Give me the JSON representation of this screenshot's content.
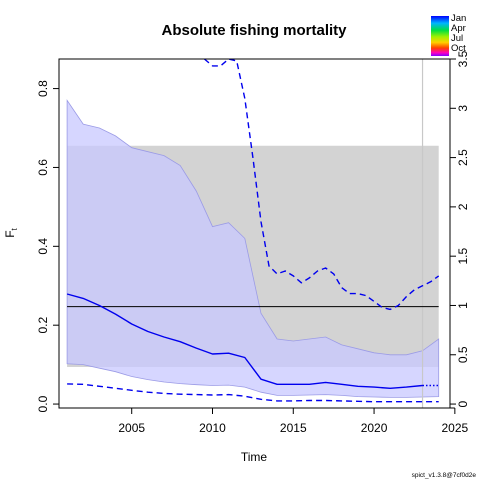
{
  "chart_data": {
    "type": "line",
    "title": "Absolute fishing mortality",
    "xlabel": "Time",
    "ylabel": "F",
    "ylabel_subscript": "t",
    "footer": "spict_v1.3.8@7cf0d2e",
    "xlim": [
      2000.5,
      2024.7
    ],
    "ylim": [
      -0.01,
      0.875
    ],
    "ylim_right": [
      -0.04,
      3.5
    ],
    "right_axis_scale": 4,
    "x_ticks": [
      2005,
      2010,
      2015,
      2020,
      2025
    ],
    "y_ticks": [
      0.0,
      0.2,
      0.4,
      0.6,
      0.8
    ],
    "y_ticks_right": [
      0,
      0.5,
      1,
      1.5,
      2,
      2.5,
      3,
      3.5
    ],
    "y_tick_labels": [
      "0.0",
      "0.2",
      "0.4",
      "0.6",
      "0.8"
    ],
    "y_tick_labels_right": [
      "0",
      "0.5",
      "1",
      "1.5",
      "2",
      "2.5",
      "3",
      "3.5"
    ],
    "fmsy": 0.247,
    "fmsy_ci": [
      0.094,
      0.655
    ],
    "shade_x_range": [
      2001,
      2024
    ],
    "vertical_line_x": 2023,
    "colors": {
      "estimate": "#0000ee",
      "ci_fill": "#c8c8ff",
      "ci_edge": "#9b9be6",
      "ref_band": "#d3d3d3",
      "ref_line": "#000000",
      "vline": "#c8c8c8"
    },
    "series": [
      {
        "name": "F estimate",
        "style": "solid",
        "x": [
          2001,
          2002,
          2003,
          2004,
          2005,
          2006,
          2007,
          2008,
          2009,
          2010,
          2011,
          2012,
          2013,
          2014,
          2015,
          2016,
          2017,
          2018,
          2019,
          2020,
          2021,
          2022,
          2023
        ],
        "values": [
          0.279,
          0.268,
          0.25,
          0.228,
          0.203,
          0.184,
          0.17,
          0.158,
          0.142,
          0.127,
          0.129,
          0.118,
          0.063,
          0.05,
          0.05,
          0.05,
          0.055,
          0.05,
          0.045,
          0.043,
          0.04,
          0.043,
          0.047
        ]
      },
      {
        "name": "F forecast",
        "style": "dotted",
        "x": [
          2023,
          2024
        ],
        "values": [
          0.047,
          0.047
        ]
      },
      {
        "name": "CI upper",
        "style": "dashed",
        "axis": "right",
        "x": [
          2009.5,
          2010,
          2010.5,
          2011,
          2011.5,
          2012,
          2012.5,
          2013,
          2013.5,
          2014,
          2014.5,
          2015,
          2015.5,
          2016,
          2016.5,
          2017,
          2017.5,
          2018,
          2018.5,
          2019,
          2019.5,
          2020,
          2020.5,
          2021,
          2021.5,
          2022,
          2022.5,
          2023,
          2023.5,
          2024
        ],
        "values": [
          3.5,
          3.43,
          3.43,
          3.5,
          3.48,
          3.1,
          2.5,
          1.85,
          1.4,
          1.32,
          1.35,
          1.3,
          1.23,
          1.28,
          1.35,
          1.38,
          1.32,
          1.18,
          1.12,
          1.12,
          1.1,
          1.04,
          0.98,
          0.96,
          1.0,
          1.09,
          1.16,
          1.2,
          1.24,
          1.3
        ]
      },
      {
        "name": "CI lower",
        "style": "dashed",
        "x": [
          2001,
          2002,
          2003,
          2004,
          2005,
          2006,
          2007,
          2008,
          2009,
          2010,
          2011,
          2012,
          2013,
          2014,
          2015,
          2016,
          2017,
          2018,
          2019,
          2020,
          2021,
          2022,
          2023,
          2024
        ],
        "values": [
          0.051,
          0.05,
          0.045,
          0.04,
          0.035,
          0.03,
          0.027,
          0.025,
          0.024,
          0.023,
          0.024,
          0.02,
          0.012,
          0.008,
          0.008,
          0.009,
          0.009,
          0.008,
          0.007,
          0.006,
          0.006,
          0.006,
          0.006,
          0.006
        ]
      }
    ],
    "ci_band": {
      "x": [
        2001,
        2002,
        2003,
        2004,
        2005,
        2006,
        2007,
        2008,
        2009,
        2010,
        2011,
        2012,
        2013,
        2014,
        2015,
        2016,
        2017,
        2018,
        2019,
        2020,
        2021,
        2022,
        2023,
        2024
      ],
      "upper": [
        0.77,
        0.71,
        0.7,
        0.68,
        0.65,
        0.64,
        0.63,
        0.605,
        0.54,
        0.45,
        0.46,
        0.42,
        0.23,
        0.165,
        0.16,
        0.165,
        0.17,
        0.15,
        0.14,
        0.13,
        0.125,
        0.125,
        0.135,
        0.165
      ],
      "lower": [
        0.102,
        0.1,
        0.091,
        0.082,
        0.07,
        0.062,
        0.056,
        0.052,
        0.049,
        0.047,
        0.048,
        0.043,
        0.03,
        0.022,
        0.022,
        0.023,
        0.024,
        0.022,
        0.019,
        0.018,
        0.017,
        0.017,
        0.018,
        0.019
      ]
    },
    "legend": {
      "position": "top-right",
      "entries": [
        {
          "label": "Jan"
        },
        {
          "label": "Apr"
        },
        {
          "label": "Jul"
        },
        {
          "label": "Oct"
        }
      ]
    }
  }
}
